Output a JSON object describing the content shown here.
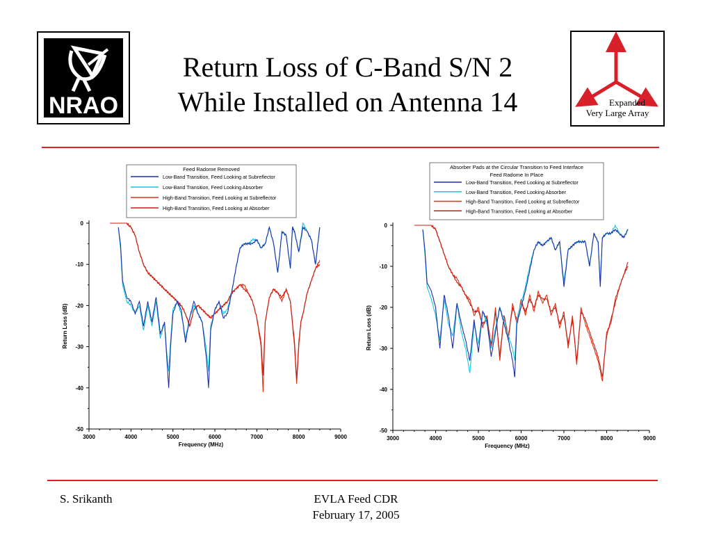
{
  "slide": {
    "title_line1": "Return Loss of C-Band S/N 2",
    "title_line2": "While Installed on Antenna 14",
    "footer_left": "S. Srikanth",
    "footer_center_line1": "EVLA Feed CDR",
    "footer_center_line2": "February 17, 2005",
    "rule_color": "#e02020"
  },
  "logos": {
    "nrao_text": "NRAO",
    "evla_line1": "Expanded",
    "evla_line2": "Very Large Array"
  },
  "chart_data": [
    {
      "type": "line",
      "xlabel": "Frequency (MHz)",
      "ylabel": "Return Loss (dB)",
      "xlim": [
        3000,
        9000
      ],
      "ylim": [
        -50,
        0
      ],
      "xticks": [
        "3000",
        "4000",
        "5000",
        "6000",
        "7000",
        "8000",
        "9000"
      ],
      "yticks": [
        "0",
        "-10",
        "-20",
        "-30",
        "-40",
        "-50"
      ],
      "legend_title_lines": [
        "Feed Radome Removed"
      ],
      "legend_position": "top-center",
      "series": [
        {
          "name": "Low-Band Transition, Feed Looking at Subreflector",
          "color": "#1c2fa8",
          "x": [
            3700,
            3750,
            3800,
            3900,
            4000,
            4100,
            4200,
            4300,
            4400,
            4500,
            4600,
            4700,
            4800,
            4850,
            4900,
            4950,
            5000,
            5100,
            5200,
            5300,
            5400,
            5500,
            5600,
            5700,
            5800,
            5850,
            5900,
            6000,
            6100,
            6200,
            6300,
            6400,
            6500,
            6600,
            6700,
            6800,
            6900,
            7000,
            7100,
            7200,
            7300,
            7400,
            7500,
            7550,
            7600,
            7700,
            7800,
            7850,
            7900,
            8000,
            8100,
            8200,
            8300,
            8400,
            8500
          ],
          "y": [
            -1,
            -5,
            -14,
            -18,
            -19,
            -22,
            -19,
            -25,
            -19,
            -24,
            -18,
            -27,
            -24,
            -32,
            -40,
            -29,
            -22,
            -19,
            -21,
            -29,
            -23,
            -19,
            -22,
            -24,
            -33,
            -40,
            -26,
            -21,
            -19,
            -23,
            -22,
            -17,
            -11,
            -6,
            -5,
            -5,
            -5,
            -4,
            -6,
            -5,
            -1,
            -5,
            -12,
            -7,
            -2,
            -3,
            -11,
            -1,
            -2,
            -7,
            -1,
            -2,
            -4,
            -10,
            -1
          ]
        },
        {
          "name": "Low-Band Transition, Feed Looking Absorber",
          "color": "#14c8e0",
          "x": [
            3700,
            3750,
            3800,
            3900,
            4000,
            4100,
            4200,
            4300,
            4400,
            4500,
            4600,
            4700,
            4800,
            4850,
            4900,
            4950,
            5000,
            5100,
            5200,
            5300,
            5400,
            5500,
            5600,
            5700,
            5800,
            5850,
            5900,
            6000,
            6100,
            6200,
            6300,
            6400,
            6500,
            6600,
            6700,
            6800,
            6900,
            7000,
            7100,
            7200,
            7300,
            7400,
            7500,
            7550,
            7600,
            7700,
            7800,
            7850,
            7900,
            8000,
            8100,
            8200,
            8300,
            8400,
            8500
          ],
          "y": [
            -1,
            -6,
            -15,
            -19,
            -20,
            -22,
            -20,
            -26,
            -20,
            -25,
            -19,
            -28,
            -24,
            -31,
            -36,
            -28,
            -21,
            -19,
            -22,
            -28,
            -23,
            -20,
            -22,
            -24,
            -31,
            -36,
            -25,
            -21,
            -19,
            -22,
            -21,
            -17,
            -11,
            -6,
            -5,
            -5,
            -4,
            -4,
            -6,
            -5,
            -1,
            -5,
            -12,
            -7,
            -2,
            -3,
            -11,
            -1,
            -2,
            -7,
            0,
            -2,
            -4,
            -10,
            -1
          ]
        },
        {
          "name": "High-Band Transition, Feed Looking at Subreflector",
          "color": "#e03010",
          "x": [
            3500,
            3700,
            3900,
            4000,
            4100,
            4200,
            4300,
            4400,
            4500,
            4600,
            4700,
            4800,
            4900,
            5000,
            5100,
            5200,
            5300,
            5400,
            5500,
            5600,
            5700,
            5800,
            5900,
            6000,
            6100,
            6200,
            6300,
            6400,
            6500,
            6600,
            6700,
            6800,
            6900,
            7000,
            7100,
            7150,
            7200,
            7300,
            7400,
            7500,
            7600,
            7700,
            7800,
            7900,
            7950,
            8000,
            8050,
            8100,
            8200,
            8300,
            8400,
            8500
          ],
          "y": [
            0,
            0,
            0,
            -1,
            -3,
            -7,
            -10,
            -12,
            -13,
            -14,
            -15,
            -16,
            -17,
            -18,
            -19,
            -20,
            -22,
            -25,
            -21,
            -20,
            -21,
            -22,
            -23,
            -22,
            -21,
            -20,
            -19,
            -17,
            -16,
            -15,
            -15,
            -17,
            -19,
            -23,
            -30,
            -41,
            -24,
            -18,
            -16,
            -17,
            -19,
            -16,
            -19,
            -30,
            -39,
            -30,
            -24,
            -22,
            -17,
            -14,
            -11,
            -10
          ]
        },
        {
          "name": "High-Band Transition, Feed Looking at Absorber",
          "color": "#c81e14",
          "x": [
            3500,
            3700,
            3900,
            4000,
            4100,
            4200,
            4300,
            4400,
            4500,
            4600,
            4700,
            4800,
            4900,
            5000,
            5100,
            5200,
            5300,
            5400,
            5500,
            5600,
            5700,
            5800,
            5900,
            6000,
            6100,
            6200,
            6300,
            6400,
            6500,
            6600,
            6700,
            6800,
            6900,
            7000,
            7100,
            7150,
            7200,
            7300,
            7400,
            7500,
            7600,
            7700,
            7800,
            7900,
            7950,
            8000,
            8050,
            8100,
            8200,
            8300,
            8400,
            8500
          ],
          "y": [
            0,
            0,
            0,
            -1,
            -3,
            -7,
            -10,
            -12,
            -13,
            -14,
            -15,
            -16,
            -17,
            -18,
            -19,
            -20,
            -22,
            -25,
            -21,
            -20,
            -21,
            -22,
            -23,
            -22,
            -21,
            -20,
            -19,
            -17,
            -16,
            -15,
            -16,
            -17,
            -19,
            -23,
            -29,
            -37,
            -24,
            -18,
            -16,
            -17,
            -18,
            -16,
            -19,
            -29,
            -38,
            -29,
            -24,
            -22,
            -17,
            -14,
            -11,
            -9
          ]
        }
      ]
    },
    {
      "type": "line",
      "xlabel": "Frequency (MHz)",
      "ylabel": "Return Loss (dB)",
      "xlim": [
        3000,
        9000
      ],
      "ylim": [
        -50,
        0
      ],
      "xticks": [
        "3000",
        "4000",
        "5000",
        "6000",
        "7000",
        "8000",
        "9000"
      ],
      "yticks": [
        "0",
        "-10",
        "-20",
        "-30",
        "-40",
        "-50"
      ],
      "legend_title_lines": [
        "Absorber Pads at the Circular Transition to Feed Interface",
        "Feed Radome In Place"
      ],
      "legend_position": "top-center",
      "series": [
        {
          "name": "Low-Band Transition, Feed Looking at Subreflector",
          "color": "#1c2fa8",
          "x": [
            3700,
            3750,
            3800,
            3900,
            4000,
            4100,
            4200,
            4300,
            4400,
            4500,
            4600,
            4700,
            4800,
            4900,
            5000,
            5100,
            5200,
            5300,
            5400,
            5500,
            5600,
            5700,
            5800,
            5850,
            5900,
            6000,
            6100,
            6200,
            6300,
            6400,
            6500,
            6600,
            6700,
            6800,
            6900,
            7000,
            7100,
            7200,
            7300,
            7400,
            7500,
            7600,
            7700,
            7800,
            7850,
            7900,
            8000,
            8100,
            8200,
            8300,
            8400,
            8500
          ],
          "y": [
            -1,
            -6,
            -14,
            -16,
            -20,
            -30,
            -17,
            -22,
            -30,
            -19,
            -24,
            -28,
            -33,
            -23,
            -31,
            -21,
            -23,
            -32,
            -26,
            -20,
            -24,
            -28,
            -33,
            -37,
            -24,
            -20,
            -16,
            -11,
            -6,
            -4,
            -5,
            -4,
            -3,
            -6,
            -4,
            -15,
            -6,
            -5,
            -4,
            -4,
            -4,
            -10,
            -2,
            -4,
            -15,
            -3,
            -2,
            -2,
            -1,
            -2,
            -3,
            -1
          ]
        },
        {
          "name": "Low-Band Transition, Feed Looking Absorber",
          "color": "#14c8e0",
          "x": [
            3700,
            3750,
            3800,
            3900,
            4000,
            4100,
            4200,
            4300,
            4400,
            4500,
            4600,
            4700,
            4800,
            4900,
            5000,
            5100,
            5200,
            5300,
            5400,
            5500,
            5600,
            5700,
            5800,
            5850,
            5900,
            6000,
            6100,
            6200,
            6300,
            6400,
            6500,
            6600,
            6700,
            6800,
            6900,
            7000,
            7100,
            7200,
            7300,
            7400,
            7500,
            7600,
            7700,
            7800,
            7850,
            7900,
            8000,
            8100,
            8200,
            8300,
            8400,
            8500
          ],
          "y": [
            -1,
            -7,
            -15,
            -18,
            -22,
            -28,
            -18,
            -24,
            -27,
            -19,
            -26,
            -30,
            -36,
            -24,
            -29,
            -21,
            -24,
            -30,
            -25,
            -20,
            -23,
            -27,
            -30,
            -33,
            -23,
            -19,
            -15,
            -10,
            -6,
            -4,
            -5,
            -4,
            -3,
            -6,
            -4,
            -14,
            -6,
            -5,
            -4,
            -4,
            -4,
            -10,
            -2,
            -4,
            -14,
            -3,
            -2,
            -2,
            0,
            -2,
            -3,
            -1
          ]
        },
        {
          "name": "High-Band Transition, Feed Looking at Subreflector",
          "color": "#e03010",
          "x": [
            3500,
            3700,
            3900,
            4000,
            4100,
            4200,
            4300,
            4400,
            4500,
            4600,
            4700,
            4800,
            4900,
            5000,
            5100,
            5200,
            5300,
            5400,
            5500,
            5600,
            5700,
            5800,
            5900,
            6000,
            6100,
            6200,
            6300,
            6400,
            6500,
            6600,
            6700,
            6800,
            6900,
            7000,
            7100,
            7200,
            7300,
            7400,
            7500,
            7600,
            7700,
            7800,
            7900,
            8000,
            8100,
            8200,
            8300,
            8400,
            8500
          ],
          "y": [
            0,
            0,
            0,
            -1,
            -4,
            -7,
            -10,
            -12,
            -13,
            -15,
            -17,
            -18,
            -22,
            -20,
            -25,
            -22,
            -30,
            -20,
            -33,
            -22,
            -28,
            -19,
            -24,
            -18,
            -22,
            -17,
            -21,
            -16,
            -19,
            -17,
            -22,
            -19,
            -25,
            -21,
            -30,
            -22,
            -34,
            -20,
            -24,
            -27,
            -30,
            -33,
            -38,
            -26,
            -24,
            -18,
            -15,
            -12,
            -10
          ]
        },
        {
          "name": "High-Band Transition, Feed Looking at Absorber",
          "color": "#c81e14",
          "x": [
            3500,
            3700,
            3900,
            4000,
            4100,
            4200,
            4300,
            4400,
            4500,
            4600,
            4700,
            4800,
            4900,
            5000,
            5100,
            5200,
            5300,
            5400,
            5500,
            5600,
            5700,
            5800,
            5900,
            6000,
            6100,
            6200,
            6300,
            6400,
            6500,
            6600,
            6700,
            6800,
            6900,
            7000,
            7100,
            7200,
            7300,
            7400,
            7500,
            7600,
            7700,
            7800,
            7900,
            8000,
            8100,
            8200,
            8300,
            8400,
            8500
          ],
          "y": [
            0,
            0,
            0,
            -1,
            -4,
            -7,
            -10,
            -12,
            -14,
            -15,
            -17,
            -19,
            -21,
            -21,
            -24,
            -23,
            -29,
            -21,
            -32,
            -22,
            -27,
            -20,
            -23,
            -19,
            -21,
            -18,
            -20,
            -17,
            -18,
            -18,
            -21,
            -20,
            -24,
            -22,
            -29,
            -23,
            -33,
            -21,
            -23,
            -26,
            -29,
            -32,
            -37,
            -27,
            -23,
            -19,
            -15,
            -12,
            -9
          ]
        }
      ]
    }
  ]
}
